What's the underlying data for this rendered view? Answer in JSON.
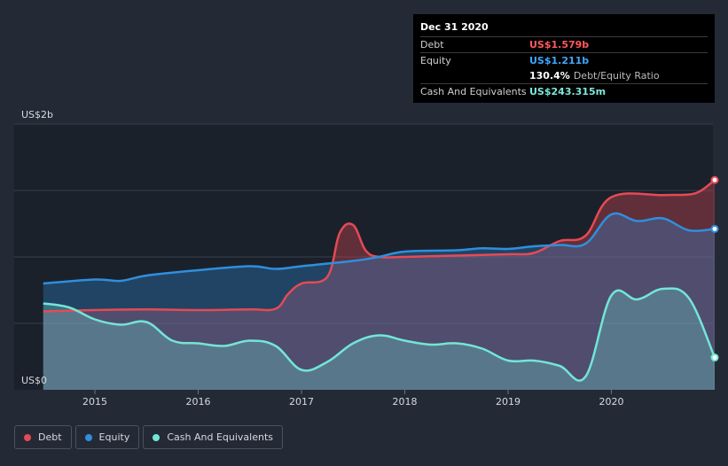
{
  "tooltip": {
    "date": "Dec 31 2020",
    "debt_label": "Debt",
    "debt_value": "US$1.579b",
    "equity_label": "Equity",
    "equity_value": "US$1.211b",
    "ratio_value": "130.4%",
    "ratio_label": "Debt/Equity Ratio",
    "cash_label": "Cash And Equivalents",
    "cash_value": "US$243.315m"
  },
  "legend": {
    "debt": "Debt",
    "equity": "Equity",
    "cash": "Cash And Equivalents"
  },
  "colors": {
    "debt": "#e64a55",
    "equity": "#2f8fdd",
    "cash": "#72e6d6",
    "tooltip_debt": "#ff5a5a",
    "tooltip_equity": "#3da8ff",
    "tooltip_cash": "#7fe8dc"
  },
  "chart_data": {
    "type": "area",
    "title": "",
    "xlabel": "",
    "ylabel": "",
    "ylim": [
      0,
      2.0
    ],
    "xlim": [
      2014.5,
      2021.0
    ],
    "y_tick_labels": [
      {
        "value": 2.0,
        "label": "US$2b"
      },
      {
        "value": 0.0,
        "label": "US$0"
      }
    ],
    "gridlines": [
      0.5,
      1.0,
      1.5,
      2.0
    ],
    "x_ticks": [
      {
        "value": 2015,
        "label": "2015"
      },
      {
        "value": 2016,
        "label": "2016"
      },
      {
        "value": 2017,
        "label": "2017"
      },
      {
        "value": 2018,
        "label": "2018"
      },
      {
        "value": 2019,
        "label": "2019"
      },
      {
        "value": 2020,
        "label": "2020"
      }
    ],
    "series": [
      {
        "name": "Debt",
        "key": "debt",
        "points": [
          [
            2014.5,
            0.59
          ],
          [
            2015.0,
            0.6
          ],
          [
            2015.5,
            0.605
          ],
          [
            2016.0,
            0.6
          ],
          [
            2016.5,
            0.605
          ],
          [
            2016.75,
            0.61
          ],
          [
            2016.87,
            0.72
          ],
          [
            2017.0,
            0.8
          ],
          [
            2017.25,
            0.85
          ],
          [
            2017.37,
            1.18
          ],
          [
            2017.5,
            1.24
          ],
          [
            2017.62,
            1.05
          ],
          [
            2017.75,
            1.0
          ],
          [
            2018.0,
            1.0
          ],
          [
            2018.5,
            1.01
          ],
          [
            2019.0,
            1.02
          ],
          [
            2019.25,
            1.03
          ],
          [
            2019.5,
            1.12
          ],
          [
            2019.75,
            1.16
          ],
          [
            2020.0,
            1.45
          ],
          [
            2020.5,
            1.465
          ],
          [
            2020.75,
            1.47
          ],
          [
            2020.87,
            1.5
          ],
          [
            2021.0,
            1.579
          ]
        ]
      },
      {
        "name": "Equity",
        "key": "equity",
        "points": [
          [
            2014.5,
            0.8
          ],
          [
            2015.0,
            0.83
          ],
          [
            2015.25,
            0.82
          ],
          [
            2015.5,
            0.86
          ],
          [
            2016.0,
            0.9
          ],
          [
            2016.5,
            0.93
          ],
          [
            2016.75,
            0.91
          ],
          [
            2017.0,
            0.93
          ],
          [
            2017.5,
            0.97
          ],
          [
            2017.75,
            1.0
          ],
          [
            2018.0,
            1.04
          ],
          [
            2018.5,
            1.05
          ],
          [
            2018.75,
            1.065
          ],
          [
            2019.0,
            1.06
          ],
          [
            2019.25,
            1.08
          ],
          [
            2019.5,
            1.09
          ],
          [
            2019.75,
            1.1
          ],
          [
            2020.0,
            1.32
          ],
          [
            2020.25,
            1.27
          ],
          [
            2020.5,
            1.29
          ],
          [
            2020.75,
            1.2
          ],
          [
            2021.0,
            1.211
          ]
        ]
      },
      {
        "name": "Cash And Equivalents",
        "key": "cash",
        "points": [
          [
            2014.5,
            0.65
          ],
          [
            2014.75,
            0.62
          ],
          [
            2015.0,
            0.53
          ],
          [
            2015.25,
            0.49
          ],
          [
            2015.5,
            0.51
          ],
          [
            2015.75,
            0.37
          ],
          [
            2016.0,
            0.35
          ],
          [
            2016.25,
            0.33
          ],
          [
            2016.5,
            0.37
          ],
          [
            2016.75,
            0.33
          ],
          [
            2017.0,
            0.15
          ],
          [
            2017.25,
            0.21
          ],
          [
            2017.5,
            0.35
          ],
          [
            2017.75,
            0.41
          ],
          [
            2018.0,
            0.37
          ],
          [
            2018.25,
            0.34
          ],
          [
            2018.5,
            0.35
          ],
          [
            2018.75,
            0.31
          ],
          [
            2019.0,
            0.22
          ],
          [
            2019.25,
            0.22
          ],
          [
            2019.5,
            0.18
          ],
          [
            2019.75,
            0.1
          ],
          [
            2020.0,
            0.71
          ],
          [
            2020.25,
            0.68
          ],
          [
            2020.5,
            0.76
          ],
          [
            2020.75,
            0.69
          ],
          [
            2021.0,
            0.243
          ]
        ]
      }
    ]
  }
}
